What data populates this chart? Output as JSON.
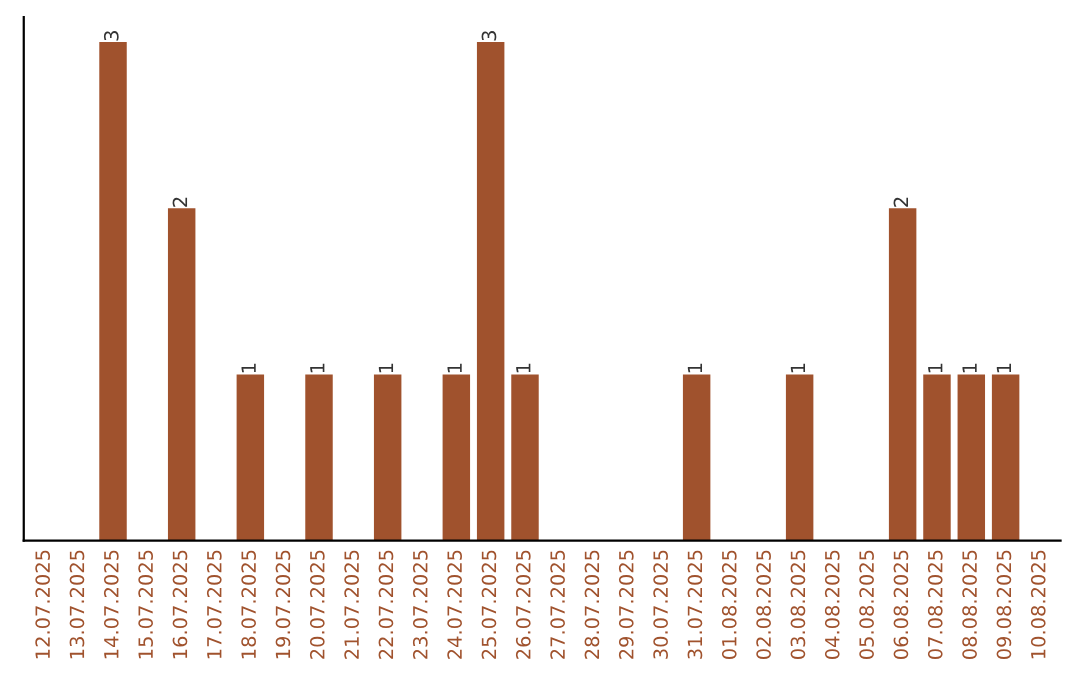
{
  "chart_data": {
    "type": "bar",
    "categories": [
      "12.07.2025",
      "13.07.2025",
      "14.07.2025",
      "15.07.2025",
      "16.07.2025",
      "17.07.2025",
      "18.07.2025",
      "19.07.2025",
      "20.07.2025",
      "21.07.2025",
      "22.07.2025",
      "23.07.2025",
      "24.07.2025",
      "25.07.2025",
      "26.07.2025",
      "27.07.2025",
      "28.07.2025",
      "29.07.2025",
      "30.07.2025",
      "31.07.2025",
      "01.08.2025",
      "02.08.2025",
      "03.08.2025",
      "04.08.2025",
      "05.08.2025",
      "06.08.2025",
      "07.08.2025",
      "08.08.2025",
      "09.08.2025",
      "10.08.2025"
    ],
    "values": [
      0,
      0,
      3,
      0,
      2,
      0,
      1,
      0,
      1,
      0,
      1,
      0,
      1,
      3,
      1,
      0,
      0,
      0,
      0,
      1,
      0,
      0,
      1,
      0,
      0,
      2,
      1,
      1,
      1,
      0
    ],
    "value_labels": [
      null,
      null,
      "3",
      null,
      "2",
      null,
      "1",
      null,
      "1",
      null,
      "1",
      null,
      "1",
      "3",
      "1",
      null,
      null,
      null,
      null,
      "1",
      null,
      null,
      "1",
      null,
      null,
      "2",
      "1",
      "1",
      "1",
      null
    ],
    "color": "#a0522d",
    "tick_labels": "x",
    "grid": false,
    "legend": false
  }
}
